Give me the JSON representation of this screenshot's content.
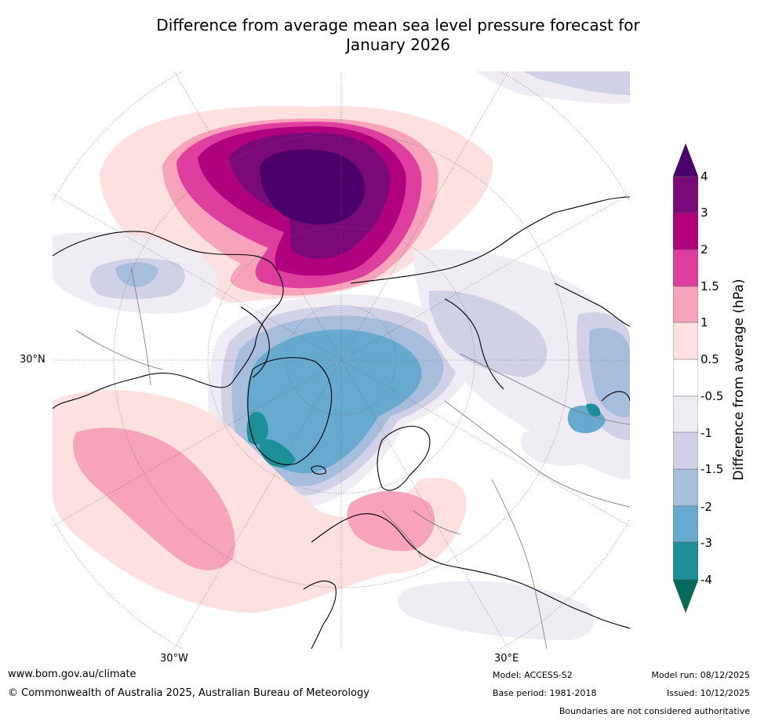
{
  "title_line1": "Difference from average mean sea level pressure forecast for",
  "title_line2": "January 2026",
  "map_labels": {
    "lat_30n": "30°N",
    "lon_30w": "30°W",
    "lon_30e": "30°E"
  },
  "colorbar": {
    "title": "Difference from average (hPa)",
    "ticks": [
      "4",
      "3",
      "2",
      "1.5",
      "1",
      "0.5",
      "-0.5",
      "-1",
      "-1.5",
      "-2",
      "-3",
      "-4"
    ],
    "colors": {
      "above_4": "#4a0068",
      "3_to_4": "#7a0a78",
      "2_to_3": "#b0007e",
      "1_5_to_2": "#de3f9e",
      "1_to_1_5": "#f7a3bb",
      "0_5_to_1": "#fde0df",
      "neutral": "#ffffff",
      "m1_to_m0_5": "#f0ecf4",
      "m1_5_to_m1": "#d0d1e6",
      "m2_to_m1_5": "#a6bddb",
      "m3_to_m2": "#67a9cf",
      "m4_to_m3": "#1c9099",
      "below_m4": "#016c59"
    }
  },
  "footer": {
    "website": "www.bom.gov.au/climate",
    "copyright": "© Commonwealth of Australia 2025, Australian Bureau of Meteorology",
    "model": "Model: ACCESS-S2",
    "base_period": "Base period: 1981-2018",
    "model_run": "Model run: 08/12/2025",
    "issued": "Issued: 10/12/2025",
    "disclaimer": "Boundaries are not considered authoritative"
  }
}
